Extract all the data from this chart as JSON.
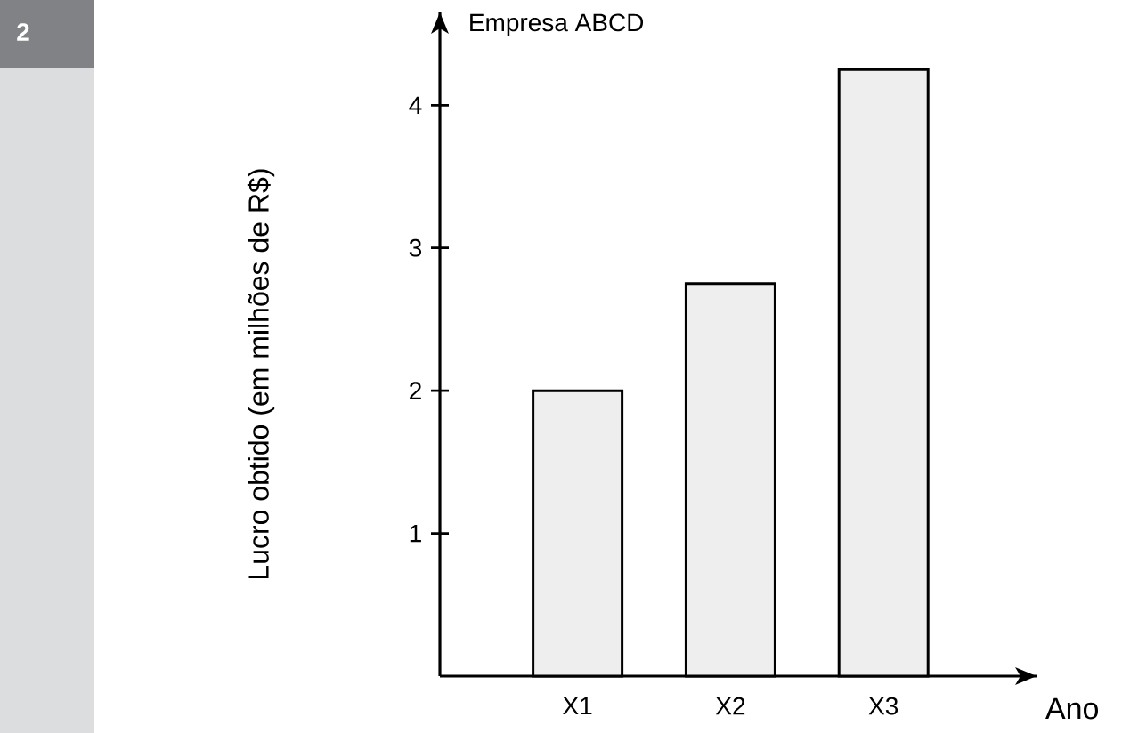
{
  "chart_data": {
    "type": "bar",
    "title": "Empresa ABCD",
    "xlabel": "Ano",
    "ylabel": "Lucro obtido (em milhões de R$)",
    "categories": [
      "X1",
      "X2",
      "X3"
    ],
    "values": [
      2,
      2.75,
      4.25
    ],
    "color": "#eeeeee",
    "ylim": [
      0,
      4.65
    ],
    "yticks": [
      1,
      2,
      3,
      4
    ],
    "grid": false,
    "annotations": [
      "2"
    ]
  }
}
